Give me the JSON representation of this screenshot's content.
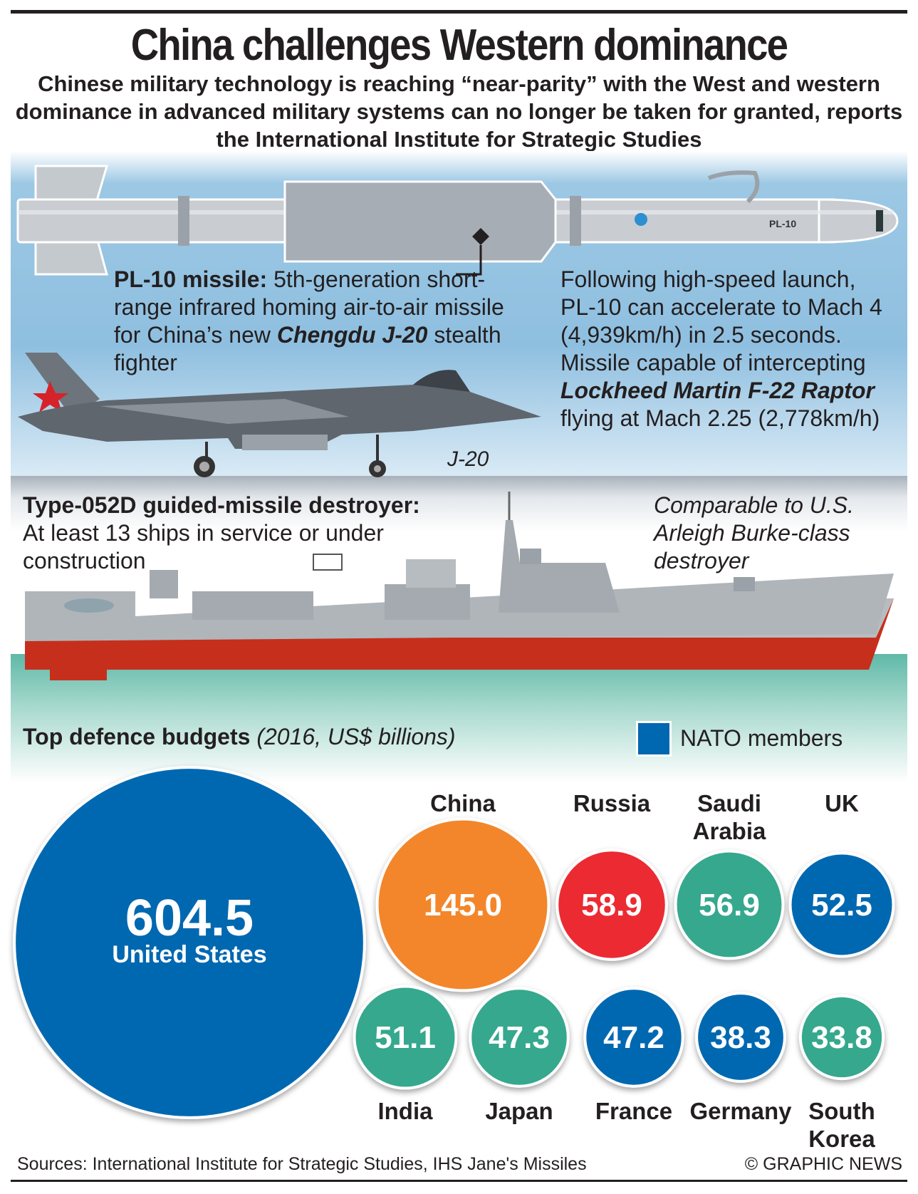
{
  "header": {
    "title": "China challenges Western dominance",
    "subtitle": "Chinese military technology is reaching “near-parity” with the West and western dominance in advanced military systems can no longer be taken for granted, reports the International Institute for Strategic Studies"
  },
  "missile": {
    "marking": "PL-10",
    "name": "PL-10 missile:",
    "desc1": " 5th-generation short-range infrared homing air-to-air missile for China’s new ",
    "desc_em": "Chengdu J-20",
    "desc2": " stealth fighter",
    "perf1": "Following high-speed launch, PL-10 can accelerate to Mach 4 (4,939km/h) in 2.5 seconds. Missile capable of intercepting ",
    "perf_em": "Lockheed Martin F-22 Raptor",
    "perf2": " flying at Mach 2.25 (2,778km/h)"
  },
  "jet": {
    "label": "J-20"
  },
  "ship": {
    "name": "Type-052D guided-missile destroyer:",
    "desc": "At least 13 ships in service or under construction",
    "compare": "Comparable to U.S. Arleigh Burke-class destroyer"
  },
  "budgets": {
    "title": "Top defence budgets",
    "units": "(2016, US$ billions)",
    "legend": "NATO members"
  },
  "colors": {
    "nato": "#0067b1",
    "china": "#f3862a",
    "russia": "#ec2b32",
    "other": "#35a88e"
  },
  "chart_data": {
    "type": "bubble",
    "title": "Top defence budgets (2016, US$ billions)",
    "legend": [
      "NATO members"
    ],
    "countries": [
      {
        "name": "United States",
        "value": 604.5,
        "value_label": "604.5",
        "group": "nato"
      },
      {
        "name": "China",
        "value": 145.0,
        "value_label": "145.0",
        "group": "china"
      },
      {
        "name": "Russia",
        "value": 58.9,
        "value_label": "58.9",
        "group": "russia"
      },
      {
        "name": "Saudi Arabia",
        "value": 56.9,
        "value_label": "56.9",
        "group": "other"
      },
      {
        "name": "UK",
        "value": 52.5,
        "value_label": "52.5",
        "group": "nato"
      },
      {
        "name": "India",
        "value": 51.1,
        "value_label": "51.1",
        "group": "other"
      },
      {
        "name": "Japan",
        "value": 47.3,
        "value_label": "47.3",
        "group": "other"
      },
      {
        "name": "France",
        "value": 47.2,
        "value_label": "47.2",
        "group": "nato"
      },
      {
        "name": "Germany",
        "value": 38.3,
        "value_label": "38.3",
        "group": "nato"
      },
      {
        "name": "South Korea",
        "value": 33.8,
        "value_label": "33.8",
        "group": "other"
      }
    ]
  },
  "footer": {
    "sources": "Sources: International Institute for Strategic Studies, IHS Jane's Missiles",
    "credit": "© GRAPHIC NEWS"
  }
}
